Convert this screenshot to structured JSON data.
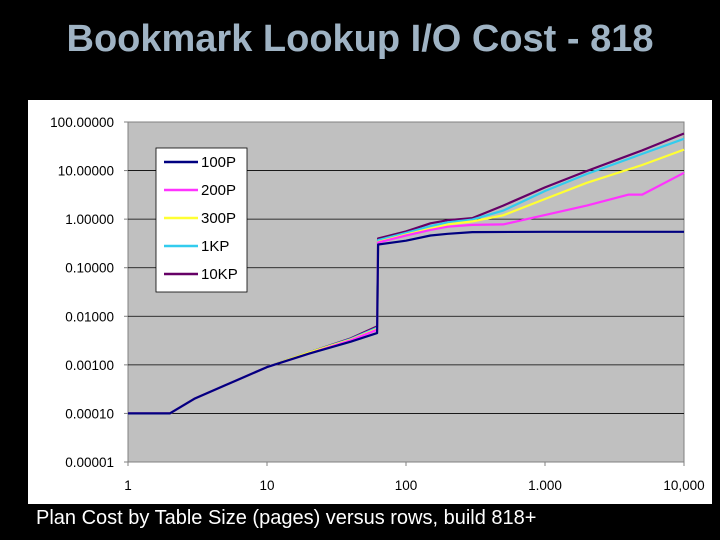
{
  "slide": {
    "title": "Bookmark Lookup I/O Cost - 818",
    "caption": "Plan Cost by Table Size (pages) versus rows, build 818+"
  },
  "chart_data": {
    "type": "line",
    "title": "",
    "xlabel": "",
    "ylabel": "",
    "x_scale": "log",
    "y_scale": "log",
    "xlim": [
      1,
      10000
    ],
    "ylim": [
      1e-05,
      100
    ],
    "grid": "horizontal",
    "plot_background": "#c0c0c0",
    "legend_position": "top-left",
    "x_ticks": [
      {
        "value": 1,
        "label": "1"
      },
      {
        "value": 10,
        "label": "10"
      },
      {
        "value": 100,
        "label": "100"
      },
      {
        "value": 1000,
        "label": "1.000"
      },
      {
        "value": 10000,
        "label": "10,000"
      }
    ],
    "y_ticks": [
      {
        "value": 100,
        "label": "100.00000"
      },
      {
        "value": 10,
        "label": "10.00000"
      },
      {
        "value": 1,
        "label": "1.00000"
      },
      {
        "value": 0.1,
        "label": "0.10000"
      },
      {
        "value": 0.01,
        "label": "0.01000"
      },
      {
        "value": 0.001,
        "label": "0.00100"
      },
      {
        "value": 0.0001,
        "label": "0.00010"
      },
      {
        "value": 1e-05,
        "label": "0.00001"
      }
    ],
    "series": [
      {
        "name": "10KP",
        "color": "#660066",
        "points": [
          [
            1,
            0.0001
          ],
          [
            2,
            0.0001
          ],
          [
            3,
            0.0002
          ],
          [
            5,
            0.00038
          ],
          [
            10,
            0.0009
          ],
          [
            20,
            0.0018
          ],
          [
            40,
            0.0035
          ],
          [
            62,
            0.0062
          ],
          [
            63,
            0.4
          ],
          [
            100,
            0.56
          ],
          [
            150,
            0.82
          ],
          [
            200,
            0.95
          ],
          [
            300,
            1.05
          ],
          [
            500,
            1.9
          ],
          [
            1000,
            4.5
          ],
          [
            2000,
            9.8
          ],
          [
            5000,
            26
          ],
          [
            10000,
            58
          ]
        ]
      },
      {
        "name": "1KP",
        "color": "#33ccee",
        "points": [
          [
            1,
            0.0001
          ],
          [
            2,
            0.0001
          ],
          [
            3,
            0.0002
          ],
          [
            5,
            0.00038
          ],
          [
            10,
            0.0009
          ],
          [
            20,
            0.0018
          ],
          [
            40,
            0.0034
          ],
          [
            62,
            0.0058
          ],
          [
            63,
            0.37
          ],
          [
            100,
            0.52
          ],
          [
            150,
            0.72
          ],
          [
            200,
            0.86
          ],
          [
            300,
            0.98
          ],
          [
            500,
            1.5
          ],
          [
            1000,
            3.8
          ],
          [
            2000,
            8.5
          ],
          [
            5000,
            22
          ],
          [
            10000,
            45
          ]
        ]
      },
      {
        "name": "300P",
        "color": "#ffff33",
        "points": [
          [
            1,
            0.0001
          ],
          [
            2,
            0.0001
          ],
          [
            3,
            0.0002
          ],
          [
            5,
            0.00038
          ],
          [
            10,
            0.0009
          ],
          [
            20,
            0.0018
          ],
          [
            40,
            0.0033
          ],
          [
            62,
            0.0055
          ],
          [
            63,
            0.34
          ],
          [
            100,
            0.48
          ],
          [
            150,
            0.64
          ],
          [
            200,
            0.78
          ],
          [
            300,
            0.9
          ],
          [
            500,
            1.2
          ],
          [
            1000,
            2.6
          ],
          [
            2000,
            5.6
          ],
          [
            5000,
            13
          ],
          [
            10000,
            27
          ]
        ]
      },
      {
        "name": "200P",
        "color": "#ff33ff",
        "points": [
          [
            1,
            0.0001
          ],
          [
            2,
            0.0001
          ],
          [
            3,
            0.0002
          ],
          [
            5,
            0.00038
          ],
          [
            10,
            0.0009
          ],
          [
            20,
            0.0017
          ],
          [
            40,
            0.0032
          ],
          [
            62,
            0.0053
          ],
          [
            63,
            0.33
          ],
          [
            100,
            0.46
          ],
          [
            150,
            0.6
          ],
          [
            200,
            0.7
          ],
          [
            300,
            0.76
          ],
          [
            500,
            0.78
          ],
          [
            800,
            1.05
          ],
          [
            2000,
            1.9
          ],
          [
            4000,
            3.2
          ],
          [
            5000,
            3.2
          ],
          [
            10000,
            9
          ]
        ]
      },
      {
        "name": "100P",
        "color": "#000080",
        "points": [
          [
            1,
            0.0001
          ],
          [
            2,
            0.0001
          ],
          [
            3,
            0.0002
          ],
          [
            5,
            0.00038
          ],
          [
            10,
            0.0009
          ],
          [
            20,
            0.0017
          ],
          [
            40,
            0.003
          ],
          [
            62,
            0.0045
          ],
          [
            63,
            0.3
          ],
          [
            100,
            0.36
          ],
          [
            150,
            0.46
          ],
          [
            200,
            0.5
          ],
          [
            300,
            0.54
          ],
          [
            1000,
            0.55
          ],
          [
            10000,
            0.55
          ]
        ]
      }
    ],
    "legend_order": [
      "100P",
      "200P",
      "300P",
      "1KP",
      "10KP"
    ]
  }
}
